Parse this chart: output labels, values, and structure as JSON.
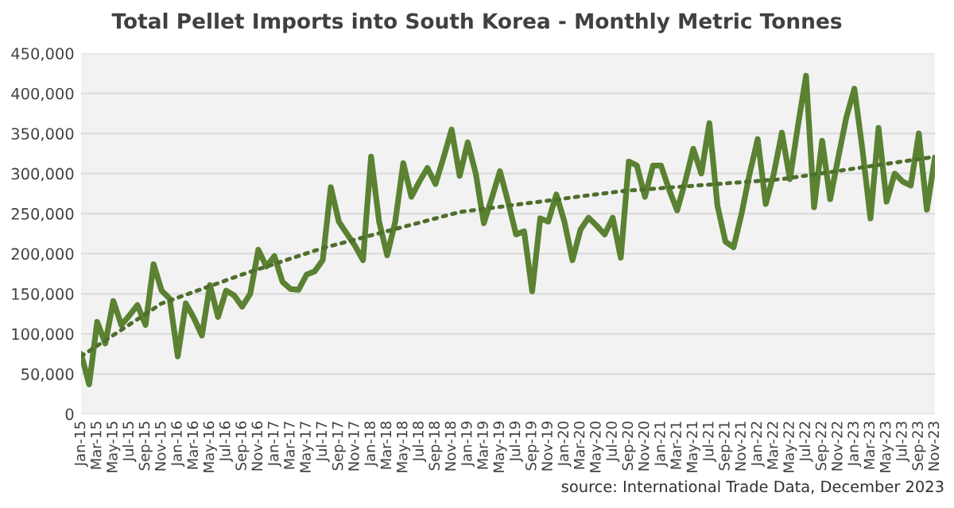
{
  "chart_data": {
    "type": "line",
    "title": "Total Pellet Imports into South Korea - Monthly Metric Tonnes",
    "annotations": [
      "source: International Trade Data, December 2023"
    ],
    "x": [
      "2015-01",
      "2015-02",
      "2015-03",
      "2015-04",
      "2015-05",
      "2015-06",
      "2015-07",
      "2015-08",
      "2015-09",
      "2015-10",
      "2015-11",
      "2015-12",
      "2016-01",
      "2016-02",
      "2016-03",
      "2016-04",
      "2016-05",
      "2016-06",
      "2016-07",
      "2016-08",
      "2016-09",
      "2016-10",
      "2016-11",
      "2016-12",
      "2017-01",
      "2017-02",
      "2017-03",
      "2017-04",
      "2017-05",
      "2017-06",
      "2017-07",
      "2017-08",
      "2017-09",
      "2017-10",
      "2017-11",
      "2017-12",
      "2018-01",
      "2018-02",
      "2018-03",
      "2018-04",
      "2018-05",
      "2018-06",
      "2018-07",
      "2018-08",
      "2018-09",
      "2018-10",
      "2018-11",
      "2018-12",
      "2019-01",
      "2019-02",
      "2019-03",
      "2019-04",
      "2019-05",
      "2019-06",
      "2019-07",
      "2019-08",
      "2019-09",
      "2019-10",
      "2019-11",
      "2019-12",
      "2020-01",
      "2020-02",
      "2020-03",
      "2020-04",
      "2020-05",
      "2020-06",
      "2020-07",
      "2020-08",
      "2020-09",
      "2020-10",
      "2020-11",
      "2020-12",
      "2021-01",
      "2021-02",
      "2021-03",
      "2021-04",
      "2021-05",
      "2021-06",
      "2021-07",
      "2021-08",
      "2021-09",
      "2021-10",
      "2021-11",
      "2021-12",
      "2022-01",
      "2022-02",
      "2022-03",
      "2022-04",
      "2022-05",
      "2022-06",
      "2022-07",
      "2022-08",
      "2022-09",
      "2022-10",
      "2022-11",
      "2022-12",
      "2023-01",
      "2023-02",
      "2023-03",
      "2023-04",
      "2023-05",
      "2023-06",
      "2023-07",
      "2023-08",
      "2023-09",
      "2023-10",
      "2023-11"
    ],
    "series": [
      {
        "color": "#5a8232",
        "line_style": "solid",
        "values": [
          75000,
          37000,
          115000,
          88000,
          141000,
          111000,
          123000,
          136000,
          111000,
          187000,
          154000,
          144000,
          72000,
          138000,
          120000,
          98000,
          161000,
          121000,
          154000,
          148000,
          134000,
          150000,
          205000,
          184000,
          197000,
          165000,
          156000,
          155000,
          174000,
          178000,
          192000,
          283000,
          240000,
          225000,
          210000,
          192000,
          321000,
          240000,
          198000,
          240000,
          313000,
          271000,
          290000,
          307000,
          287000,
          320000,
          355000,
          297000,
          339000,
          300000,
          238000,
          270000,
          303000,
          265000,
          224000,
          228000,
          153000,
          244000,
          240000,
          274000,
          240000,
          192000,
          230000,
          245000,
          235000,
          224000,
          245000,
          195000,
          315000,
          310000,
          271000,
          310000,
          310000,
          280000,
          254000,
          290000,
          331000,
          300000,
          363000,
          260000,
          215000,
          208000,
          250000,
          300000,
          343000,
          262000,
          300000,
          351000,
          293000,
          360000,
          422000,
          258000,
          341000,
          268000,
          320000,
          370000,
          406000,
          330000,
          244000,
          357000,
          265000,
          300000,
          290000,
          285000,
          350000,
          255000,
          320000
        ]
      },
      {
        "color": "#4e6e2c",
        "line_style": "dotted",
        "x": [
          "2015-01",
          "2015-11",
          "2016-09",
          "2017-07",
          "2018-12",
          "2020-08",
          "2022-04",
          "2023-11"
        ],
        "values": [
          72000,
          138000,
          174000,
          207000,
          252000,
          278000,
          293000,
          321000
        ]
      }
    ],
    "xlim": [
      "2015-01",
      "2023-11"
    ],
    "xticks": [
      {
        "value": "2015-01",
        "label": "Jan-15"
      },
      {
        "value": "2015-03",
        "label": "Mar-15"
      },
      {
        "value": "2015-05",
        "label": "May-15"
      },
      {
        "value": "2015-07",
        "label": "Jul-15"
      },
      {
        "value": "2015-09",
        "label": "Sep-15"
      },
      {
        "value": "2015-11",
        "label": "Nov-15"
      },
      {
        "value": "2016-01",
        "label": "Jan-16"
      },
      {
        "value": "2016-03",
        "label": "Mar-16"
      },
      {
        "value": "2016-05",
        "label": "May-16"
      },
      {
        "value": "2016-07",
        "label": "Jul-16"
      },
      {
        "value": "2016-09",
        "label": "Sep-16"
      },
      {
        "value": "2016-11",
        "label": "Nov-16"
      },
      {
        "value": "2017-01",
        "label": "Jan-17"
      },
      {
        "value": "2017-03",
        "label": "Mar-17"
      },
      {
        "value": "2017-05",
        "label": "May-17"
      },
      {
        "value": "2017-07",
        "label": "Jul-17"
      },
      {
        "value": "2017-09",
        "label": "Sep-17"
      },
      {
        "value": "2017-11",
        "label": "Nov-17"
      },
      {
        "value": "2018-01",
        "label": "Jan-18"
      },
      {
        "value": "2018-03",
        "label": "Mar-18"
      },
      {
        "value": "2018-05",
        "label": "May-18"
      },
      {
        "value": "2018-07",
        "label": "Jul-18"
      },
      {
        "value": "2018-09",
        "label": "Sep-18"
      },
      {
        "value": "2018-11",
        "label": "Nov-18"
      },
      {
        "value": "2019-01",
        "label": "Jan-19"
      },
      {
        "value": "2019-03",
        "label": "Mar-19"
      },
      {
        "value": "2019-05",
        "label": "May-19"
      },
      {
        "value": "2019-07",
        "label": "Jul-19"
      },
      {
        "value": "2019-09",
        "label": "Sep-19"
      },
      {
        "value": "2019-11",
        "label": "Nov-19"
      },
      {
        "value": "2020-01",
        "label": "Jan-20"
      },
      {
        "value": "2020-03",
        "label": "Mar-20"
      },
      {
        "value": "2020-05",
        "label": "May-20"
      },
      {
        "value": "2020-07",
        "label": "Jul-20"
      },
      {
        "value": "2020-09",
        "label": "Sep-20"
      },
      {
        "value": "2020-11",
        "label": "Nov-20"
      },
      {
        "value": "2021-01",
        "label": "Jan-21"
      },
      {
        "value": "2021-03",
        "label": "Mar-21"
      },
      {
        "value": "2021-05",
        "label": "May-21"
      },
      {
        "value": "2021-07",
        "label": "Jul-21"
      },
      {
        "value": "2021-09",
        "label": "Sep-21"
      },
      {
        "value": "2021-11",
        "label": "Nov-21"
      },
      {
        "value": "2022-01",
        "label": "Jan-22"
      },
      {
        "value": "2022-03",
        "label": "Mar-22"
      },
      {
        "value": "2022-05",
        "label": "May-22"
      },
      {
        "value": "2022-07",
        "label": "Jul-22"
      },
      {
        "value": "2022-09",
        "label": "Sep-22"
      },
      {
        "value": "2022-11",
        "label": "Nov-22"
      },
      {
        "value": "2023-01",
        "label": "Jan-23"
      },
      {
        "value": "2023-03",
        "label": "Mar-23"
      },
      {
        "value": "2023-05",
        "label": "May-23"
      },
      {
        "value": "2023-07",
        "label": "Jul-23"
      },
      {
        "value": "2023-09",
        "label": "Sep-23"
      },
      {
        "value": "2023-11",
        "label": "Nov-23"
      }
    ],
    "ylim": [
      0,
      450000
    ],
    "yticks": [
      0,
      {
        "value": 50000,
        "label": "50,000"
      },
      {
        "value": 100000,
        "label": "100,000"
      },
      {
        "value": 150000,
        "label": "150,000"
      },
      {
        "value": 200000,
        "label": "200,000"
      },
      {
        "value": 250000,
        "label": "250,000"
      },
      {
        "value": 300000,
        "label": "300,000"
      },
      {
        "value": 350000,
        "label": "350,000"
      },
      {
        "value": 400000,
        "label": "400,000"
      },
      {
        "value": 450000,
        "label": "450,000"
      }
    ],
    "grid": "y",
    "marker": "none"
  }
}
